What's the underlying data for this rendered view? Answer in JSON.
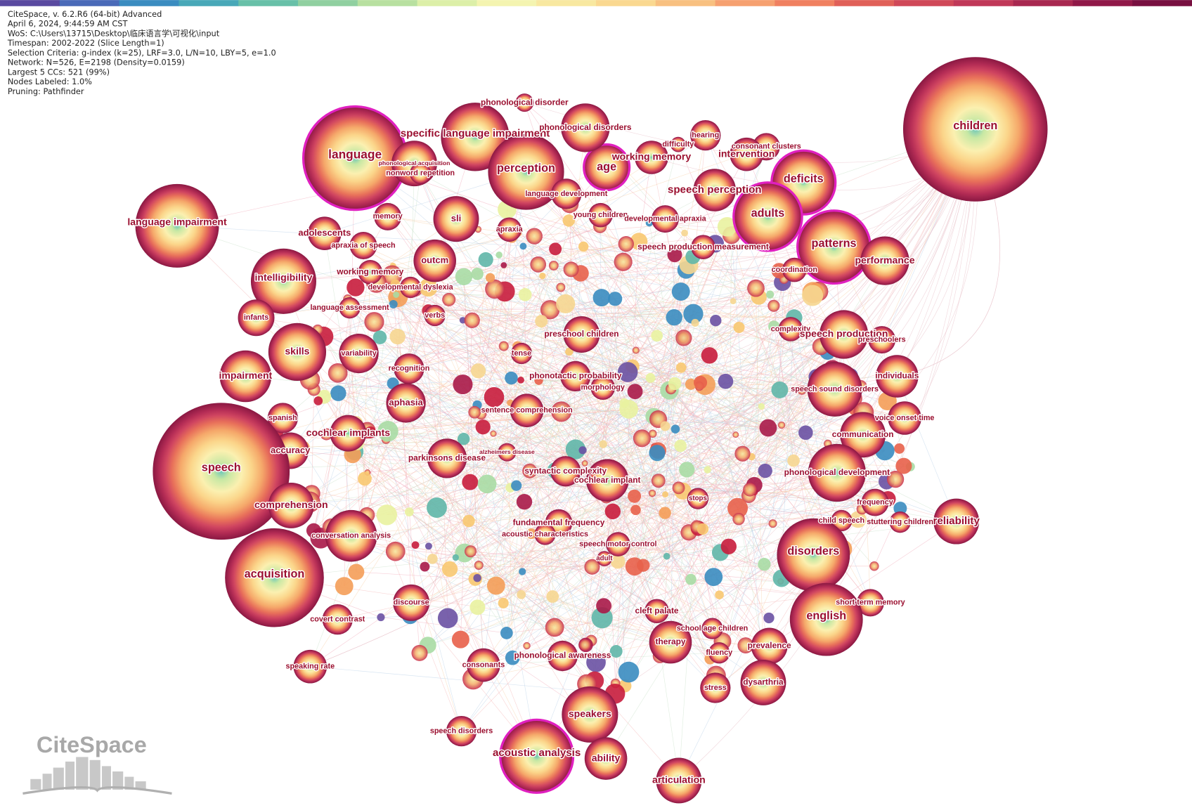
{
  "header": {
    "lines": [
      "CiteSpace, v. 6.2.R6 (64-bit) Advanced",
      "April 6, 2024, 9:44:59 AM CST",
      "WoS: C:\\Users\\13715\\Desktop\\临床语言学\\可视化\\input",
      "Timespan: 2002-2022 (Slice Length=1)",
      "Selection Criteria: g-index (k=25), LRF=3.0, L/N=10, LBY=5, e=1.0",
      "Network: N=526, E=2198 (Density=0.0159)",
      "Largest 5 CCs: 521 (99%)",
      "Nodes Labeled: 1.0%",
      "Pruning: Pathfinder"
    ]
  },
  "logo": "CiteSpace",
  "nodes": [
    {
      "label": "children"
    },
    {
      "label": "language"
    },
    {
      "label": "specific language impairment"
    },
    {
      "label": "perception"
    },
    {
      "label": "age"
    },
    {
      "label": "working memory"
    },
    {
      "label": "phonological disorders"
    },
    {
      "label": "phonological disorder"
    },
    {
      "label": "hearing"
    },
    {
      "label": "difficulty"
    },
    {
      "label": "consonant clusters"
    },
    {
      "label": "intervention"
    },
    {
      "label": "deficits"
    },
    {
      "label": "speech perception"
    },
    {
      "label": "adults"
    },
    {
      "label": "patterns"
    },
    {
      "label": "performance"
    },
    {
      "label": "language impairment"
    },
    {
      "label": "phonological acquisition"
    },
    {
      "label": "nonword repetition"
    },
    {
      "label": "language development"
    },
    {
      "label": "memory"
    },
    {
      "label": "sli"
    },
    {
      "label": "apraxia"
    },
    {
      "label": "young children"
    },
    {
      "label": "developmental apraxia"
    },
    {
      "label": "adolescents"
    },
    {
      "label": "apraxia of speech"
    },
    {
      "label": "outcm"
    },
    {
      "label": "speech production measurement"
    },
    {
      "label": "coordination"
    },
    {
      "label": "intelligibility"
    },
    {
      "label": "working memory"
    },
    {
      "label": "developmental dyslexia"
    },
    {
      "label": "language assessment"
    },
    {
      "label": "verbs"
    },
    {
      "label": "infants"
    },
    {
      "label": "preschool children"
    },
    {
      "label": "complexity"
    },
    {
      "label": "speech production"
    },
    {
      "label": "preschoolers"
    },
    {
      "label": "skills"
    },
    {
      "label": "variability"
    },
    {
      "label": "tense"
    },
    {
      "label": "impairment"
    },
    {
      "label": "recognition"
    },
    {
      "label": "individuals"
    },
    {
      "label": "phonotactic probability"
    },
    {
      "label": "morphology"
    },
    {
      "label": "speech sound disorders"
    },
    {
      "label": "aphasia"
    },
    {
      "label": "sentence comprehension"
    },
    {
      "label": "spanish"
    },
    {
      "label": "cochlear implants"
    },
    {
      "label": "voice onset time"
    },
    {
      "label": "communication"
    },
    {
      "label": "accuracy"
    },
    {
      "label": "parkinsons disease"
    },
    {
      "label": "alzheimers disease"
    },
    {
      "label": "speech"
    },
    {
      "label": "syntactic complexity"
    },
    {
      "label": "cochlear implant"
    },
    {
      "label": "phonological development"
    },
    {
      "label": "stops"
    },
    {
      "label": "frequency"
    },
    {
      "label": "comprehension"
    },
    {
      "label": "reliability"
    },
    {
      "label": "child speech"
    },
    {
      "label": "stuttering children"
    },
    {
      "label": "fundamental frequency"
    },
    {
      "label": "acoustic characteristics"
    },
    {
      "label": "conversation analysis"
    },
    {
      "label": "speech motor control"
    },
    {
      "label": "adult"
    },
    {
      "label": "disorders"
    },
    {
      "label": "acquisition"
    },
    {
      "label": "discourse"
    },
    {
      "label": "short term memory"
    },
    {
      "label": "cleft palate"
    },
    {
      "label": "covert contrast"
    },
    {
      "label": "english"
    },
    {
      "label": "school age children"
    },
    {
      "label": "therapy"
    },
    {
      "label": "prevalence"
    },
    {
      "label": "fluency"
    },
    {
      "label": "phonological awareness"
    },
    {
      "label": "consonants"
    },
    {
      "label": "speaking rate"
    },
    {
      "label": "stress"
    },
    {
      "label": "dysarthria"
    },
    {
      "label": "speech disorders"
    },
    {
      "label": "speakers"
    },
    {
      "label": "acoustic analysis"
    },
    {
      "label": "ability"
    },
    {
      "label": "articulation"
    }
  ]
}
